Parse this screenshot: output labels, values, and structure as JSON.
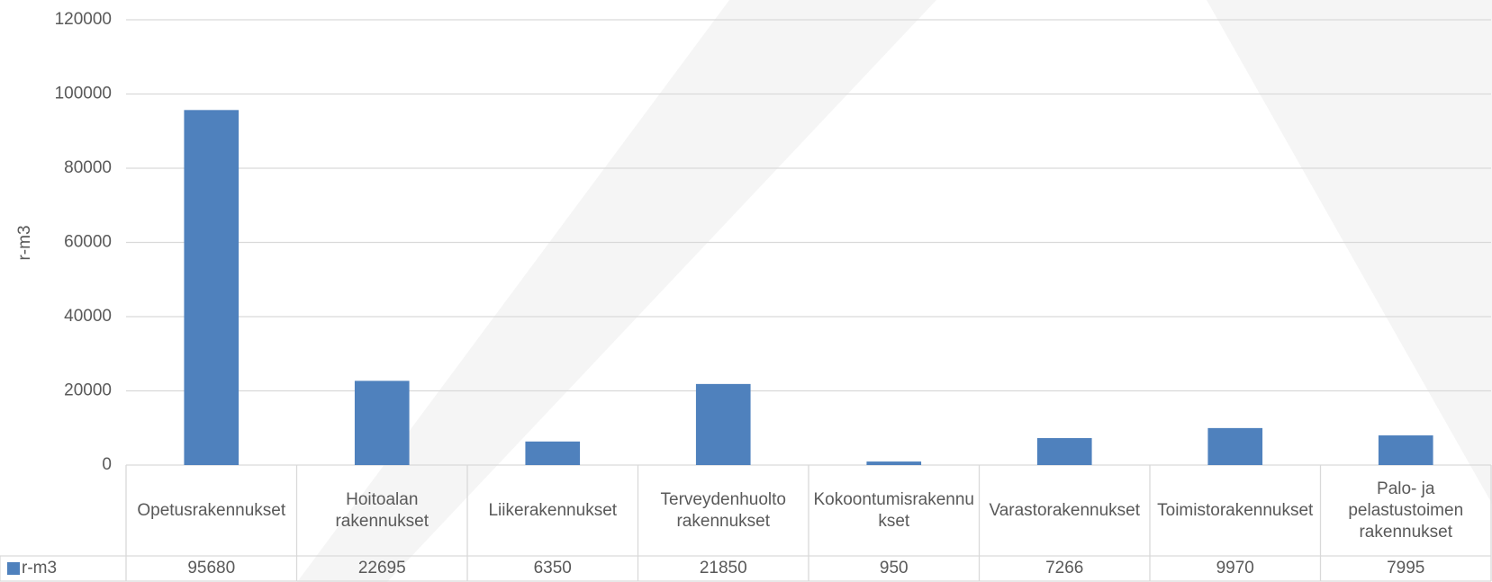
{
  "chart_data": {
    "type": "bar",
    "y_axis_label": "r-m3",
    "categories": [
      "Opetusrakennukset",
      "Hoitoalan rakennukset",
      "Liikerakennukset",
      "Terveydenhuolto rakennukset",
      "Kokoontumisrakennukset",
      "Varastorakennukset",
      "Toimistorakennukset",
      "Palo- ja pelastustoimen rakennukset"
    ],
    "series": [
      {
        "name": "r-m3",
        "color": "#4f81bd",
        "values": [
          95680,
          22695,
          6350,
          21850,
          950,
          7266,
          9970,
          7995
        ]
      }
    ],
    "ylim": [
      0,
      120000
    ],
    "yticks": [
      0,
      20000,
      40000,
      60000,
      80000,
      100000,
      120000
    ],
    "grid": true,
    "data_table": true
  }
}
